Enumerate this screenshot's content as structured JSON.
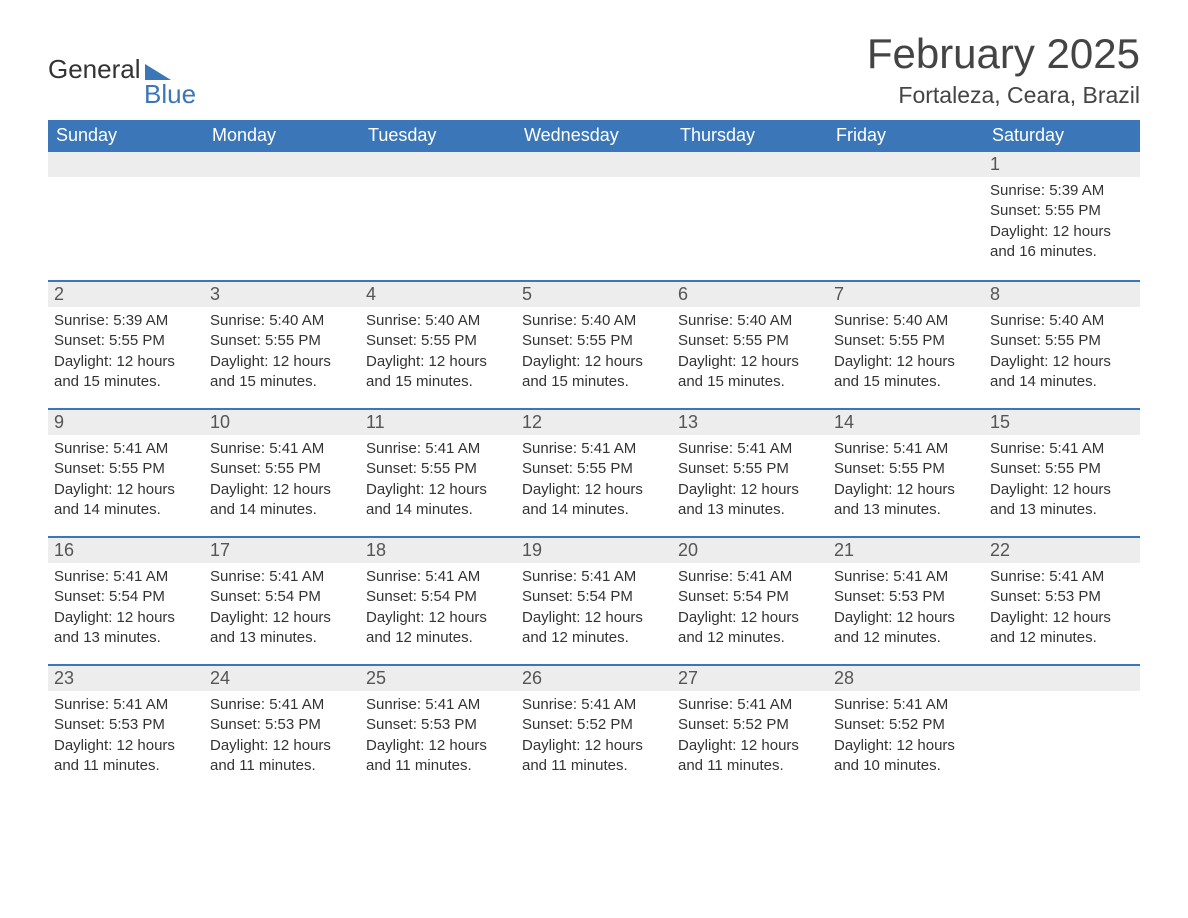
{
  "logo": {
    "word1": "General",
    "word2": "Blue"
  },
  "title": {
    "month": "February 2025",
    "location": "Fortaleza, Ceara, Brazil"
  },
  "style": {
    "accent": "#3a76b8",
    "header_bg": "#3a76b8",
    "header_text": "#ffffff",
    "daynum_bg": "#ededed",
    "body_bg": "#ffffff",
    "text": "#333333",
    "title_fontsize": 42,
    "loc_fontsize": 23,
    "th_fontsize": 18,
    "daynum_fontsize": 18,
    "body_fontsize": 15
  },
  "columns": [
    "Sunday",
    "Monday",
    "Tuesday",
    "Wednesday",
    "Thursday",
    "Friday",
    "Saturday"
  ],
  "weeks": [
    [
      null,
      null,
      null,
      null,
      null,
      null,
      {
        "n": "1",
        "sunrise": "5:39 AM",
        "sunset": "5:55 PM",
        "daylight": "12 hours and 16 minutes."
      }
    ],
    [
      {
        "n": "2",
        "sunrise": "5:39 AM",
        "sunset": "5:55 PM",
        "daylight": "12 hours and 15 minutes."
      },
      {
        "n": "3",
        "sunrise": "5:40 AM",
        "sunset": "5:55 PM",
        "daylight": "12 hours and 15 minutes."
      },
      {
        "n": "4",
        "sunrise": "5:40 AM",
        "sunset": "5:55 PM",
        "daylight": "12 hours and 15 minutes."
      },
      {
        "n": "5",
        "sunrise": "5:40 AM",
        "sunset": "5:55 PM",
        "daylight": "12 hours and 15 minutes."
      },
      {
        "n": "6",
        "sunrise": "5:40 AM",
        "sunset": "5:55 PM",
        "daylight": "12 hours and 15 minutes."
      },
      {
        "n": "7",
        "sunrise": "5:40 AM",
        "sunset": "5:55 PM",
        "daylight": "12 hours and 15 minutes."
      },
      {
        "n": "8",
        "sunrise": "5:40 AM",
        "sunset": "5:55 PM",
        "daylight": "12 hours and 14 minutes."
      }
    ],
    [
      {
        "n": "9",
        "sunrise": "5:41 AM",
        "sunset": "5:55 PM",
        "daylight": "12 hours and 14 minutes."
      },
      {
        "n": "10",
        "sunrise": "5:41 AM",
        "sunset": "5:55 PM",
        "daylight": "12 hours and 14 minutes."
      },
      {
        "n": "11",
        "sunrise": "5:41 AM",
        "sunset": "5:55 PM",
        "daylight": "12 hours and 14 minutes."
      },
      {
        "n": "12",
        "sunrise": "5:41 AM",
        "sunset": "5:55 PM",
        "daylight": "12 hours and 14 minutes."
      },
      {
        "n": "13",
        "sunrise": "5:41 AM",
        "sunset": "5:55 PM",
        "daylight": "12 hours and 13 minutes."
      },
      {
        "n": "14",
        "sunrise": "5:41 AM",
        "sunset": "5:55 PM",
        "daylight": "12 hours and 13 minutes."
      },
      {
        "n": "15",
        "sunrise": "5:41 AM",
        "sunset": "5:55 PM",
        "daylight": "12 hours and 13 minutes."
      }
    ],
    [
      {
        "n": "16",
        "sunrise": "5:41 AM",
        "sunset": "5:54 PM",
        "daylight": "12 hours and 13 minutes."
      },
      {
        "n": "17",
        "sunrise": "5:41 AM",
        "sunset": "5:54 PM",
        "daylight": "12 hours and 13 minutes."
      },
      {
        "n": "18",
        "sunrise": "5:41 AM",
        "sunset": "5:54 PM",
        "daylight": "12 hours and 12 minutes."
      },
      {
        "n": "19",
        "sunrise": "5:41 AM",
        "sunset": "5:54 PM",
        "daylight": "12 hours and 12 minutes."
      },
      {
        "n": "20",
        "sunrise": "5:41 AM",
        "sunset": "5:54 PM",
        "daylight": "12 hours and 12 minutes."
      },
      {
        "n": "21",
        "sunrise": "5:41 AM",
        "sunset": "5:53 PM",
        "daylight": "12 hours and 12 minutes."
      },
      {
        "n": "22",
        "sunrise": "5:41 AM",
        "sunset": "5:53 PM",
        "daylight": "12 hours and 12 minutes."
      }
    ],
    [
      {
        "n": "23",
        "sunrise": "5:41 AM",
        "sunset": "5:53 PM",
        "daylight": "12 hours and 11 minutes."
      },
      {
        "n": "24",
        "sunrise": "5:41 AM",
        "sunset": "5:53 PM",
        "daylight": "12 hours and 11 minutes."
      },
      {
        "n": "25",
        "sunrise": "5:41 AM",
        "sunset": "5:53 PM",
        "daylight": "12 hours and 11 minutes."
      },
      {
        "n": "26",
        "sunrise": "5:41 AM",
        "sunset": "5:52 PM",
        "daylight": "12 hours and 11 minutes."
      },
      {
        "n": "27",
        "sunrise": "5:41 AM",
        "sunset": "5:52 PM",
        "daylight": "12 hours and 11 minutes."
      },
      {
        "n": "28",
        "sunrise": "5:41 AM",
        "sunset": "5:52 PM",
        "daylight": "12 hours and 10 minutes."
      },
      null
    ]
  ],
  "labels": {
    "sunrise": "Sunrise: ",
    "sunset": "Sunset: ",
    "daylight": "Daylight: "
  }
}
